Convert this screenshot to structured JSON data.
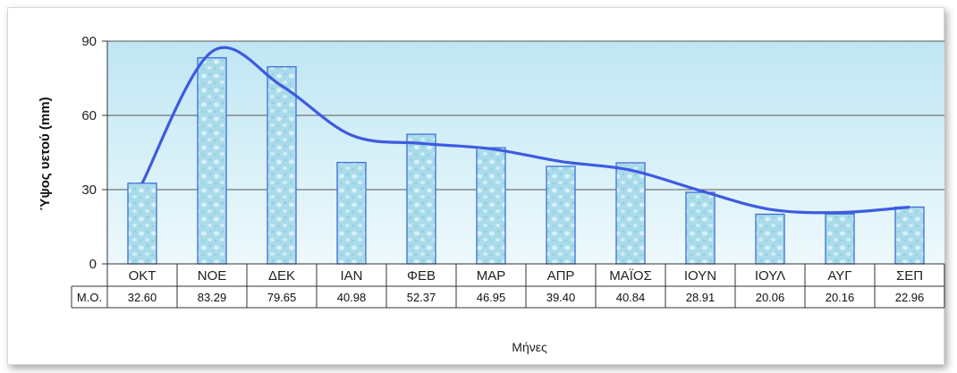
{
  "chart_data": {
    "type": "bar",
    "title": "",
    "ylabel": "Ύψος υετού (mm)",
    "xlabel": "Μήνες",
    "ylim": [
      0,
      90
    ],
    "yticks": [
      0,
      30,
      60,
      90
    ],
    "grid": true,
    "trendline": "smooth polynomial fit",
    "categories": [
      "ΟΚΤ",
      "ΝΟΕ",
      "ΔΕΚ",
      "ΙΑΝ",
      "ΦΕΒ",
      "ΜΑΡ",
      "ΑΠΡ",
      "ΜΑΪΟΣ",
      "ΙΟΥΝ",
      "ΙΟΥΛ",
      "ΑΥΓ",
      "ΣΕΠ"
    ],
    "series": [
      {
        "name": "Μ.Ο.",
        "values": [
          32.6,
          83.29,
          79.65,
          40.98,
          52.37,
          46.95,
          39.4,
          40.84,
          28.91,
          20.06,
          20.16,
          22.96
        ],
        "labels": [
          "32.60",
          "83.29",
          "79.65",
          "40.98",
          "52.37",
          "46.95",
          "39.40",
          "40.84",
          "28.91",
          "20.06",
          "20.16",
          "22.96"
        ]
      }
    ],
    "colors": {
      "plot_top": "#bfe6f3",
      "plot_bottom": "#eef9fd",
      "bar_fill": "#a9dbea",
      "bar_stroke": "#3f6fd8",
      "trend": "#3d5be0",
      "grid": "#555555"
    }
  }
}
